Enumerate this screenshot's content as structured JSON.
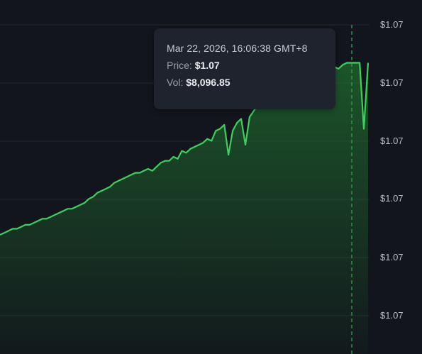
{
  "tooltip": {
    "date": "Mar 22, 2026, 16:06:38 GMT+8",
    "price_label": "Price:",
    "price_value": "$1.07",
    "vol_label": "Vol:",
    "vol_value": "$8,096.85"
  },
  "y_axis": {
    "ticks": [
      "$1.07",
      "$1.07",
      "$1.07",
      "$1.07",
      "$1.07",
      "$1.07"
    ]
  },
  "colors": {
    "background": "#12151c",
    "line": "#3ecf5e",
    "fill": "#1f6b2e",
    "grid": "#232833",
    "crosshair": "#2fae4a"
  },
  "chart_data": {
    "type": "area",
    "xlabel": "",
    "ylabel": "",
    "grid": true,
    "ylim": [
      0,
      100
    ],
    "y": [
      17,
      18,
      19,
      20,
      20,
      21,
      22,
      22,
      23,
      24,
      25,
      25,
      26,
      27,
      28,
      29,
      30,
      30,
      31,
      32,
      33,
      35,
      36,
      38,
      39,
      40,
      41,
      43,
      44,
      45,
      46,
      47,
      48,
      48,
      49,
      50,
      49,
      51,
      53,
      54,
      54,
      56,
      55,
      59,
      58,
      60,
      61,
      62,
      63,
      65,
      64,
      69,
      70,
      72,
      57,
      69,
      73,
      75,
      62,
      76,
      79,
      82,
      84,
      85,
      86,
      88,
      90,
      91,
      92,
      93,
      92,
      95,
      96,
      97,
      98,
      99,
      100,
      101,
      100,
      101,
      100,
      102,
      103,
      103,
      103,
      103,
      70,
      103
    ]
  }
}
